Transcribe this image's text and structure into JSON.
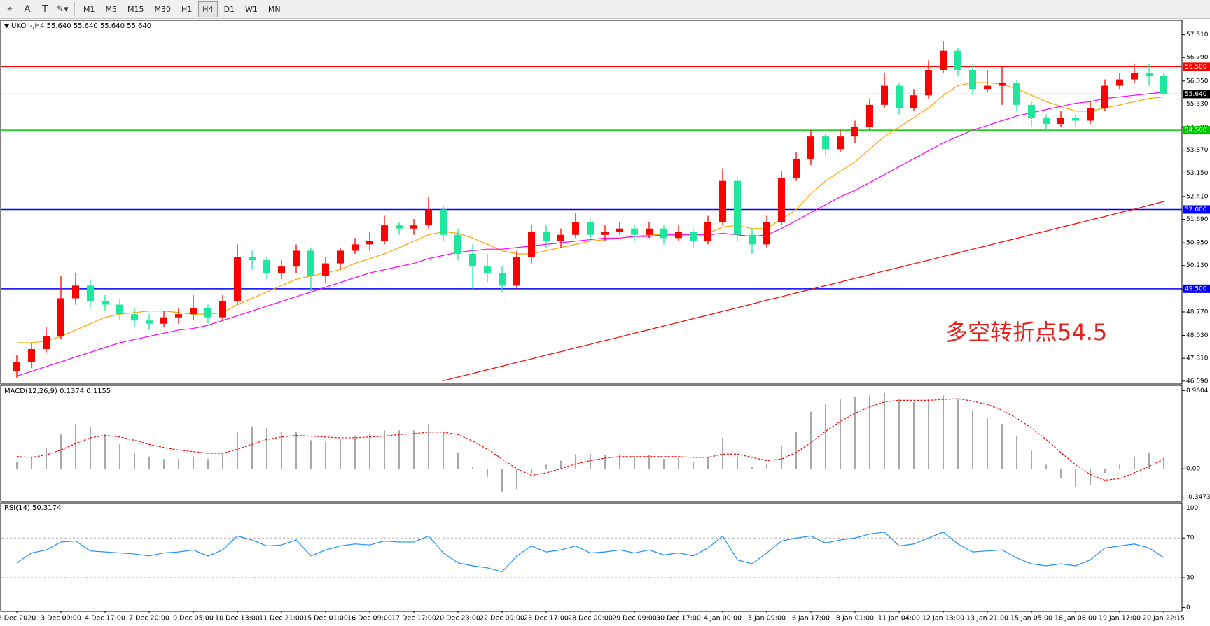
{
  "toolbar": {
    "timeframes": [
      "M1",
      "M5",
      "M15",
      "M30",
      "H1",
      "H4",
      "D1",
      "W1",
      "MN"
    ]
  },
  "chart_data": [
    {
      "type": "candlestick",
      "title": "UKOil-,H4 55.640 55.640 55.640 55.640",
      "categories": [
        "2 Dec 2020",
        null,
        null,
        "3 Dec 09:00",
        null,
        null,
        "4 Dec 17:00",
        null,
        null,
        "7 Dec 20:00",
        null,
        null,
        "9 Dec 05:00",
        null,
        null,
        "10 Dec 13:00",
        null,
        null,
        "11 Dec 21:00",
        null,
        null,
        "15 Dec 01:00",
        null,
        null,
        "16 Dec 09:00",
        null,
        null,
        "17 Dec 17:00",
        null,
        null,
        "20 Dec 23:00",
        null,
        null,
        "22 Dec 09:00",
        null,
        null,
        "23 Dec 17:00",
        null,
        null,
        "28 Dec 00:00",
        null,
        null,
        "29 Dec 09:00",
        null,
        null,
        "30 Dec 17:00",
        null,
        null,
        "4 Jan 00:00",
        null,
        null,
        "5 Jan 09:00",
        null,
        null,
        "6 Jan 17:00",
        null,
        null,
        "8 Jan 01:00",
        null,
        null,
        "11 Jan 04:00",
        null,
        null,
        "12 Jan 13:00",
        null,
        null,
        "13 Jan 21:00",
        null,
        null,
        "15 Jan 05:00",
        null,
        null,
        "18 Jan 08:00",
        null,
        null,
        "19 Jan 17:00",
        null,
        null,
        "20 Jan 22:15"
      ],
      "ohlc": [
        [
          46.9,
          47.4,
          46.7,
          47.2
        ],
        [
          47.2,
          47.8,
          47.0,
          47.6
        ],
        [
          47.6,
          48.3,
          47.5,
          48.0
        ],
        [
          48.0,
          49.9,
          47.9,
          49.2
        ],
        [
          49.2,
          50.0,
          49.0,
          49.6
        ],
        [
          49.6,
          49.8,
          48.9,
          49.1
        ],
        [
          49.1,
          49.3,
          48.8,
          49.0
        ],
        [
          49.0,
          49.2,
          48.5,
          48.7
        ],
        [
          48.7,
          48.9,
          48.3,
          48.5
        ],
        [
          48.5,
          48.7,
          48.2,
          48.4
        ],
        [
          48.4,
          48.8,
          48.3,
          48.6
        ],
        [
          48.6,
          48.9,
          48.4,
          48.7
        ],
        [
          48.7,
          49.3,
          48.5,
          48.9
        ],
        [
          48.9,
          49.0,
          48.4,
          48.6
        ],
        [
          48.6,
          49.3,
          48.5,
          49.1
        ],
        [
          49.1,
          50.9,
          49.0,
          50.5
        ],
        [
          50.5,
          50.7,
          50.1,
          50.4
        ],
        [
          50.4,
          50.5,
          49.8,
          50.0
        ],
        [
          50.0,
          50.4,
          49.8,
          50.2
        ],
        [
          50.2,
          50.9,
          50.0,
          50.7
        ],
        [
          50.7,
          50.8,
          49.4,
          49.9
        ],
        [
          49.9,
          50.5,
          49.7,
          50.3
        ],
        [
          50.3,
          50.8,
          50.1,
          50.7
        ],
        [
          50.7,
          51.1,
          50.6,
          50.9
        ],
        [
          50.9,
          51.3,
          50.7,
          51.0
        ],
        [
          51.0,
          51.8,
          50.9,
          51.5
        ],
        [
          51.5,
          51.6,
          51.2,
          51.4
        ],
        [
          51.4,
          51.7,
          51.2,
          51.5
        ],
        [
          51.5,
          52.4,
          51.4,
          52.0
        ],
        [
          52.0,
          52.1,
          51.0,
          51.2
        ],
        [
          51.2,
          51.4,
          50.4,
          50.6
        ],
        [
          50.6,
          50.9,
          49.5,
          50.2
        ],
        [
          50.2,
          50.6,
          49.7,
          50.0
        ],
        [
          50.0,
          50.2,
          49.4,
          49.6
        ],
        [
          49.6,
          50.7,
          49.5,
          50.5
        ],
        [
          50.5,
          51.5,
          50.3,
          51.3
        ],
        [
          51.3,
          51.5,
          50.8,
          51.0
        ],
        [
          51.0,
          51.4,
          50.8,
          51.2
        ],
        [
          51.2,
          51.9,
          51.1,
          51.6
        ],
        [
          51.6,
          51.7,
          51.0,
          51.2
        ],
        [
          51.2,
          51.5,
          51.0,
          51.3
        ],
        [
          51.3,
          51.6,
          51.2,
          51.4
        ],
        [
          51.4,
          51.5,
          51.0,
          51.2
        ],
        [
          51.2,
          51.6,
          51.1,
          51.4
        ],
        [
          51.4,
          51.5,
          50.9,
          51.1
        ],
        [
          51.1,
          51.5,
          51.0,
          51.3
        ],
        [
          51.3,
          51.4,
          50.8,
          51.0
        ],
        [
          51.0,
          51.8,
          50.9,
          51.6
        ],
        [
          51.6,
          53.3,
          51.5,
          52.9
        ],
        [
          52.9,
          53.0,
          51.0,
          51.2
        ],
        [
          51.2,
          51.4,
          50.6,
          50.9
        ],
        [
          50.9,
          51.8,
          50.8,
          51.6
        ],
        [
          51.6,
          53.2,
          51.5,
          53.0
        ],
        [
          53.0,
          53.8,
          52.9,
          53.6
        ],
        [
          53.6,
          54.5,
          53.4,
          54.3
        ],
        [
          54.3,
          54.4,
          53.7,
          53.9
        ],
        [
          53.9,
          54.5,
          53.8,
          54.3
        ],
        [
          54.3,
          54.8,
          54.1,
          54.6
        ],
        [
          54.6,
          55.5,
          54.5,
          55.3
        ],
        [
          55.3,
          56.3,
          55.2,
          55.9
        ],
        [
          55.9,
          56.0,
          55.0,
          55.2
        ],
        [
          55.2,
          55.8,
          55.1,
          55.6
        ],
        [
          55.6,
          56.7,
          55.5,
          56.4
        ],
        [
          56.4,
          57.3,
          56.3,
          57.0
        ],
        [
          57.0,
          57.1,
          56.2,
          56.4
        ],
        [
          56.4,
          56.6,
          55.6,
          55.8
        ],
        [
          55.8,
          56.4,
          55.7,
          55.9
        ],
        [
          55.9,
          56.5,
          55.3,
          56.0
        ],
        [
          56.0,
          56.1,
          55.1,
          55.3
        ],
        [
          55.3,
          55.4,
          54.6,
          54.9
        ],
        [
          54.9,
          55.0,
          54.5,
          54.7
        ],
        [
          54.7,
          55.1,
          54.6,
          54.9
        ],
        [
          54.9,
          55.0,
          54.6,
          54.8
        ],
        [
          54.8,
          55.4,
          54.7,
          55.2
        ],
        [
          55.2,
          56.1,
          55.1,
          55.9
        ],
        [
          55.9,
          56.3,
          55.8,
          56.1
        ],
        [
          56.1,
          56.6,
          56.0,
          56.3
        ],
        [
          56.3,
          56.6,
          55.9,
          56.2
        ],
        [
          56.2,
          56.3,
          55.6,
          55.64
        ]
      ],
      "up_color": "#ff0000",
      "down_color": "#1ee69a",
      "lines": [
        {
          "color": "#ffa500",
          "values": [
            47.8,
            47.8,
            47.85,
            48.0,
            48.2,
            48.4,
            48.6,
            48.7,
            48.75,
            48.8,
            48.8,
            48.75,
            48.7,
            48.7,
            48.75,
            49.0,
            49.2,
            49.4,
            49.6,
            49.8,
            49.9,
            50.0,
            50.1,
            50.3,
            50.45,
            50.6,
            50.8,
            51.0,
            51.2,
            51.3,
            51.25,
            51.1,
            50.9,
            50.7,
            50.6,
            50.6,
            50.7,
            50.8,
            50.9,
            51.0,
            51.05,
            51.1,
            51.15,
            51.2,
            51.2,
            51.2,
            51.2,
            51.25,
            51.45,
            51.5,
            51.4,
            51.4,
            51.7,
            52.0,
            52.5,
            52.9,
            53.2,
            53.5,
            53.9,
            54.3,
            54.6,
            54.9,
            55.2,
            55.6,
            55.9,
            56.0,
            56.0,
            55.95,
            55.8,
            55.6,
            55.4,
            55.25,
            55.1,
            55.1,
            55.2,
            55.3,
            55.4,
            55.5,
            55.55
          ]
        },
        {
          "color": "#ff00ff",
          "values": [
            46.75,
            46.9,
            47.05,
            47.2,
            47.35,
            47.5,
            47.65,
            47.8,
            47.9,
            48.0,
            48.1,
            48.2,
            48.25,
            48.35,
            48.5,
            48.65,
            48.8,
            48.95,
            49.1,
            49.25,
            49.4,
            49.55,
            49.7,
            49.85,
            50.0,
            50.1,
            50.2,
            50.3,
            50.45,
            50.55,
            50.65,
            50.7,
            50.75,
            50.75,
            50.8,
            50.85,
            50.9,
            50.95,
            51.0,
            51.05,
            51.1,
            51.1,
            51.15,
            51.15,
            51.2,
            51.2,
            51.2,
            51.2,
            51.25,
            51.2,
            51.15,
            51.2,
            51.4,
            51.65,
            51.9,
            52.15,
            52.4,
            52.6,
            52.85,
            53.1,
            53.35,
            53.6,
            53.85,
            54.1,
            54.3,
            54.5,
            54.65,
            54.8,
            54.95,
            55.05,
            55.15,
            55.25,
            55.35,
            55.4,
            55.5,
            55.55,
            55.6,
            55.65,
            55.7
          ]
        },
        {
          "color": "#ff0000",
          "values": [
            null,
            null,
            null,
            null,
            null,
            null,
            null,
            null,
            null,
            null,
            null,
            null,
            null,
            null,
            null,
            null,
            null,
            null,
            null,
            null,
            null,
            null,
            null,
            null,
            null,
            null,
            null,
            null,
            null,
            46.6,
            46.72,
            46.83,
            46.95,
            47.06,
            47.18,
            47.29,
            47.41,
            47.52,
            47.64,
            47.75,
            47.87,
            47.98,
            48.1,
            48.21,
            48.33,
            48.44,
            48.56,
            48.67,
            48.79,
            48.9,
            49.02,
            49.14,
            49.25,
            49.37,
            49.48,
            49.6,
            49.71,
            49.83,
            49.94,
            50.06,
            50.17,
            50.29,
            50.4,
            50.52,
            50.63,
            50.75,
            50.86,
            50.98,
            51.09,
            51.21,
            51.32,
            51.44,
            51.55,
            51.67,
            51.78,
            51.9,
            52.01,
            52.13,
            52.25
          ]
        }
      ],
      "hlines": [
        {
          "value": 56.5,
          "label": "56.500",
          "color": "#ff0000"
        },
        {
          "value": 55.64,
          "label": "55.640",
          "color": "#9a9a9a",
          "label_color": "#000000"
        },
        {
          "value": 54.5,
          "label": "54.500",
          "color": "#00c800"
        },
        {
          "value": 52.0,
          "label": "52.000",
          "color": "#0000ff"
        },
        {
          "value": 49.5,
          "label": "49.500",
          "color": "#0000ff"
        }
      ],
      "annotation": "多空转折点54.5",
      "annotation_color": "#e8201c",
      "ylim": [
        46.52,
        57.92
      ],
      "yticks": [
        {
          "value": 57.51,
          "label": "57.510"
        },
        {
          "value": 56.79,
          "label": "56.790"
        },
        {
          "value": 56.05,
          "label": "56.050"
        },
        {
          "value": 55.33,
          "label": "55.330"
        },
        {
          "value": 54.59,
          "label": "54.590"
        },
        {
          "value": 53.87,
          "label": "53.870"
        },
        {
          "value": 53.15,
          "label": "53.150"
        },
        {
          "value": 52.41,
          "label": "52.410"
        },
        {
          "value": 51.69,
          "label": "51.690"
        },
        {
          "value": 50.95,
          "label": "50.950"
        },
        {
          "value": 50.23,
          "label": "50.230"
        },
        {
          "value": 49.49,
          "label": "49.490"
        },
        {
          "value": 48.77,
          "label": "48.770"
        },
        {
          "value": 48.03,
          "label": "48.030"
        },
        {
          "value": 47.31,
          "label": "47.310"
        },
        {
          "value": 46.59,
          "label": "46.590"
        }
      ]
    },
    {
      "type": "bar",
      "title": "MACD(12,26,9) 0.1374 0.1155",
      "color": "#a8a8a8",
      "values": [
        0.08,
        0.15,
        0.25,
        0.42,
        0.55,
        0.52,
        0.42,
        0.3,
        0.2,
        0.15,
        0.12,
        0.12,
        0.15,
        0.12,
        0.2,
        0.45,
        0.52,
        0.5,
        0.45,
        0.45,
        0.35,
        0.33,
        0.37,
        0.4,
        0.42,
        0.47,
        0.47,
        0.47,
        0.55,
        0.45,
        0.2,
        0.02,
        -0.1,
        -0.28,
        -0.25,
        -0.05,
        0.05,
        0.1,
        0.18,
        0.18,
        0.17,
        0.18,
        0.15,
        0.17,
        0.12,
        0.13,
        0.08,
        0.15,
        0.38,
        0.15,
        0.02,
        0.05,
        0.28,
        0.45,
        0.7,
        0.8,
        0.85,
        0.88,
        0.9,
        0.93,
        0.85,
        0.82,
        0.86,
        0.9,
        0.85,
        0.72,
        0.62,
        0.55,
        0.4,
        0.22,
        0.05,
        -0.12,
        -0.22,
        -0.2,
        -0.05,
        0.05,
        0.15,
        0.2,
        0.1374
      ],
      "lines": [
        {
          "color": "#ff0000",
          "dashed": true,
          "values": [
            0.15,
            0.14,
            0.17,
            0.23,
            0.31,
            0.38,
            0.41,
            0.39,
            0.35,
            0.3,
            0.26,
            0.23,
            0.21,
            0.19,
            0.19,
            0.24,
            0.3,
            0.36,
            0.39,
            0.41,
            0.4,
            0.39,
            0.38,
            0.38,
            0.39,
            0.4,
            0.42,
            0.43,
            0.45,
            0.45,
            0.42,
            0.34,
            0.24,
            0.12,
            0.0,
            -0.08,
            -0.05,
            0.0,
            0.06,
            0.1,
            0.13,
            0.15,
            0.15,
            0.15,
            0.15,
            0.15,
            0.14,
            0.14,
            0.18,
            0.18,
            0.14,
            0.1,
            0.12,
            0.2,
            0.32,
            0.46,
            0.58,
            0.68,
            0.76,
            0.82,
            0.84,
            0.84,
            0.84,
            0.85,
            0.86,
            0.83,
            0.79,
            0.72,
            0.62,
            0.5,
            0.36,
            0.2,
            0.05,
            -0.07,
            -0.14,
            -0.12,
            -0.05,
            0.03,
            0.1155
          ]
        }
      ],
      "ylim": [
        -0.393,
        1.006
      ],
      "yticks": [
        0.9604,
        {
          "value": 0,
          "label": "0.00"
        },
        -0.3473
      ]
    },
    {
      "type": "line",
      "title": "RSI(14) 50.3174",
      "series": [
        {
          "color": "#1e90ff",
          "values": [
            45,
            55,
            58,
            66,
            67,
            57,
            56,
            55,
            54,
            52,
            55,
            56,
            58,
            52,
            58,
            72,
            68,
            62,
            63,
            68,
            52,
            58,
            62,
            64,
            63,
            67,
            66,
            66,
            72,
            55,
            45,
            42,
            40,
            36,
            52,
            62,
            56,
            58,
            62,
            55,
            56,
            58,
            55,
            58,
            53,
            55,
            52,
            60,
            72,
            48,
            44,
            55,
            67,
            70,
            72,
            65,
            68,
            70,
            74,
            76,
            62,
            64,
            70,
            76,
            64,
            56,
            57,
            58,
            50,
            44,
            42,
            44,
            42,
            48,
            60,
            62,
            64,
            60,
            50.3174
          ]
        }
      ],
      "levels": [
        70,
        30
      ],
      "ylim": [
        -3.1,
        104.7
      ],
      "yticks": [
        100,
        70,
        30,
        0
      ]
    }
  ]
}
